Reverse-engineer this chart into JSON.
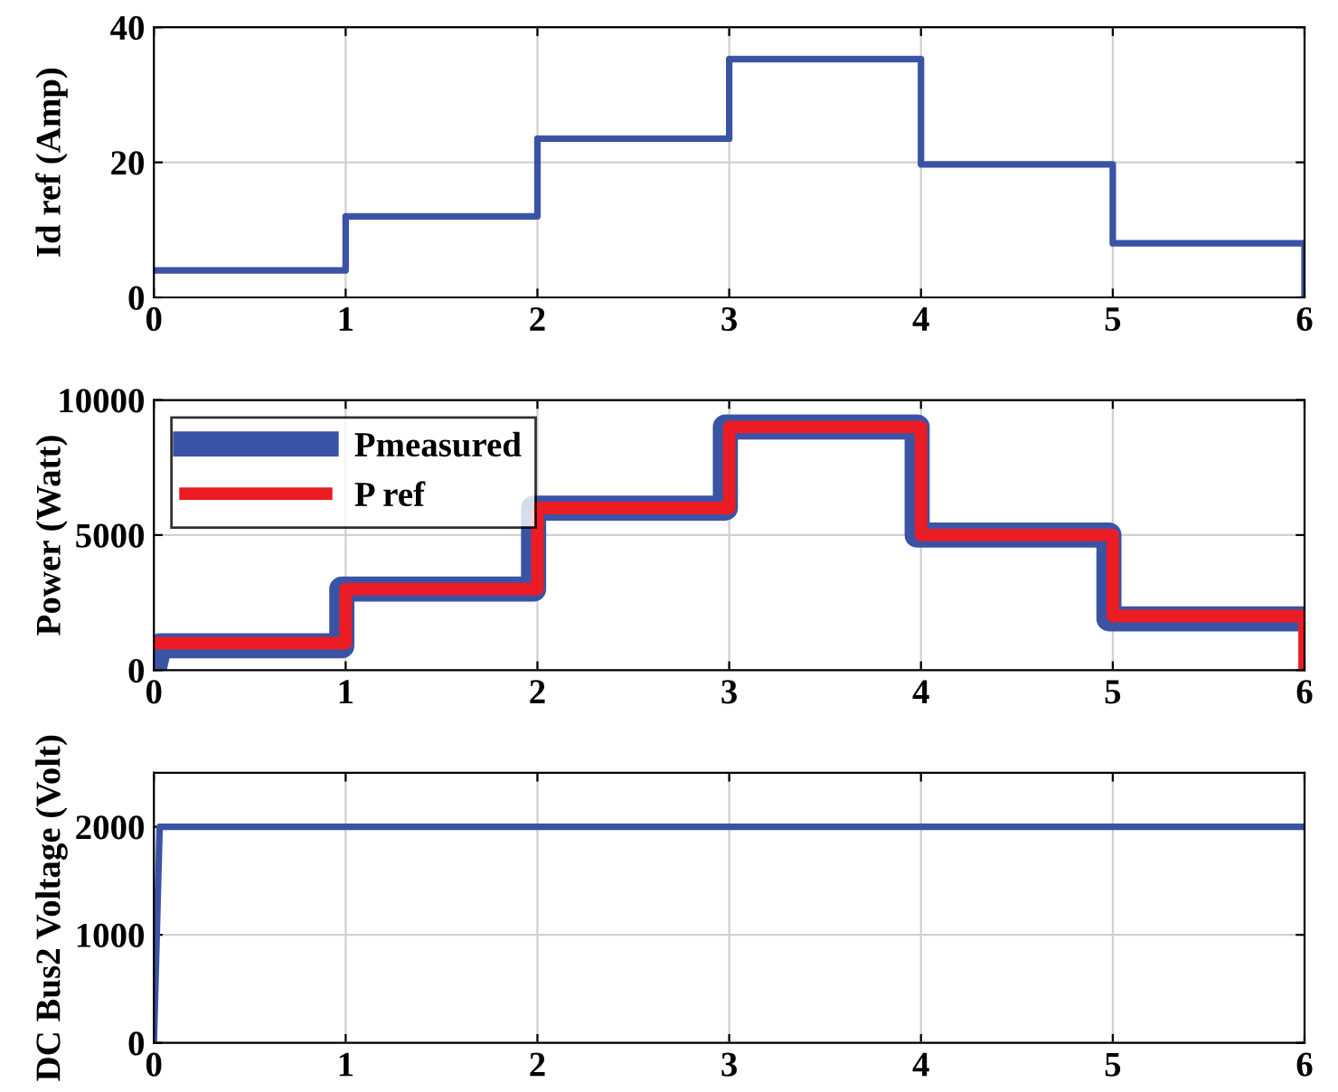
{
  "chart_data": [
    {
      "type": "line",
      "ylabel": "Id ref (Amp)",
      "xlim": [
        0,
        6
      ],
      "xticks": [
        0,
        1,
        2,
        3,
        4,
        5,
        6
      ],
      "ylim": [
        0,
        40
      ],
      "yticks": [
        0,
        20,
        40
      ],
      "grid": true,
      "legend": false,
      "series": [
        {
          "color": "#3a53a4",
          "x": [
            0,
            1,
            1,
            2,
            2,
            3,
            3,
            4,
            4,
            5,
            5,
            6,
            6
          ],
          "values": [
            4,
            4,
            12,
            12,
            23.5,
            23.5,
            35.3,
            35.3,
            19.7,
            19.7,
            8,
            8,
            0
          ]
        }
      ]
    },
    {
      "type": "line",
      "ylabel": "Power (Watt)",
      "xlim": [
        0,
        6
      ],
      "xticks": [
        0,
        1,
        2,
        3,
        4,
        5,
        6
      ],
      "ylim": [
        0,
        10000
      ],
      "yticks": [
        0,
        5000,
        10000
      ],
      "grid": true,
      "legend": "top left",
      "series": [
        {
          "name": "Pmeasured",
          "color": "#3a53a4",
          "x": [
            0,
            0.03,
            0.98,
            0.98,
            1.98,
            1.98,
            2.98,
            2.98,
            3.98,
            3.98,
            4.98,
            4.98,
            6
          ],
          "values": [
            0,
            900,
            900,
            3000,
            3000,
            6000,
            6000,
            9000,
            9000,
            5000,
            5000,
            1900,
            1900
          ]
        },
        {
          "name": "P ref",
          "color": "#ec1c24",
          "x": [
            0,
            1,
            1,
            2,
            2,
            3,
            3,
            4,
            4,
            5,
            5,
            6,
            6
          ],
          "values": [
            1000,
            1000,
            3000,
            3000,
            6000,
            6000,
            9000,
            9000,
            5000,
            5000,
            2000,
            2000,
            0
          ]
        }
      ]
    },
    {
      "type": "line",
      "ylabel": "DC Bus2 Voltage (Volt)",
      "xlim": [
        0,
        6
      ],
      "xticks": [
        0,
        1,
        2,
        3,
        4,
        5,
        6
      ],
      "ylim": [
        0,
        2500
      ],
      "yticks": [
        0,
        1000,
        2000
      ],
      "grid": true,
      "legend": false,
      "series": [
        {
          "color": "#3a53a4",
          "x": [
            0,
            0.03,
            6
          ],
          "values": [
            0,
            2000,
            2000
          ]
        }
      ]
    }
  ]
}
